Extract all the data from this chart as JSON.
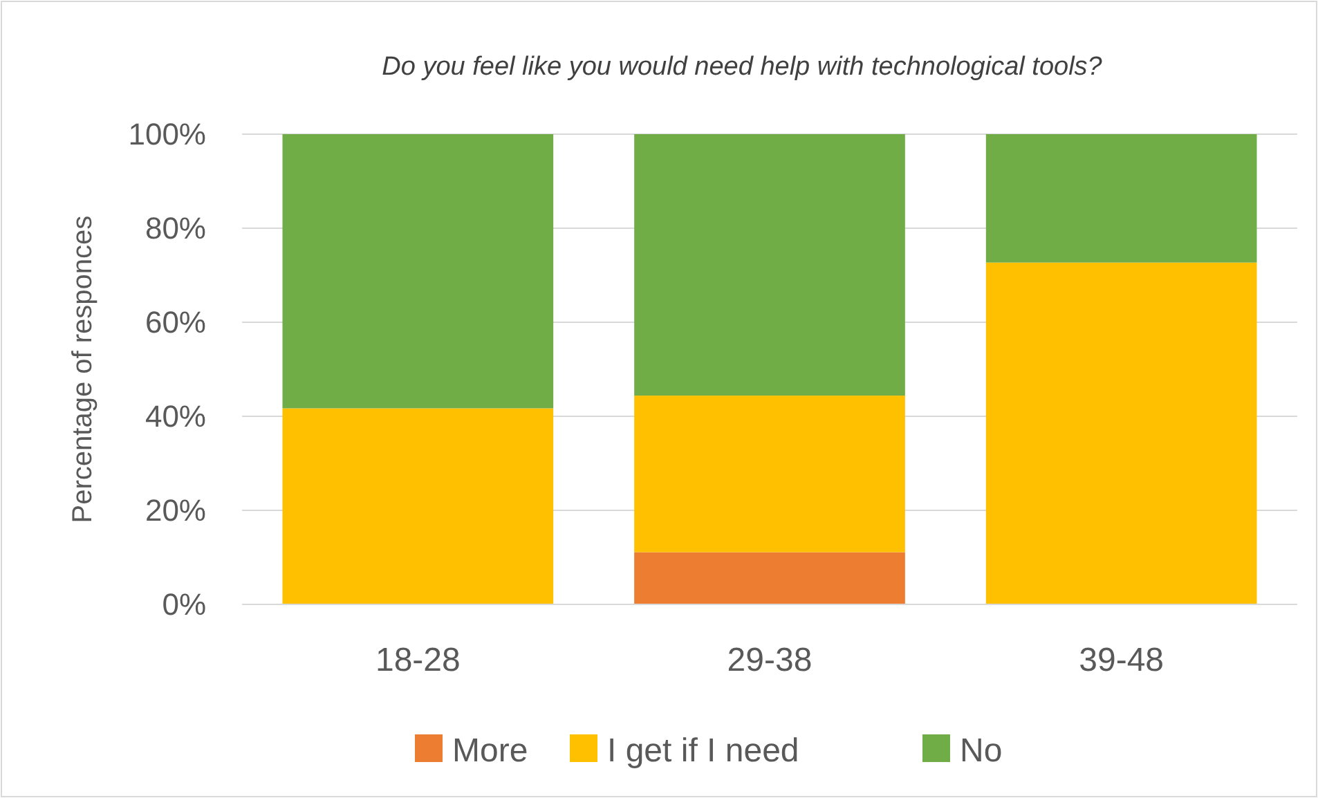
{
  "chart_data": {
    "type": "bar",
    "title": "Do you feel like you would need help with technological tools?",
    "ylabel": "Percentage of responces",
    "categories": [
      "18-28",
      "29-38",
      "39-48"
    ],
    "stacked": true,
    "series": [
      {
        "name": "More",
        "color": "#ed7d31",
        "values": [
          0,
          11.1,
          0
        ]
      },
      {
        "name": "I get if I need",
        "color": "#ffc000",
        "values": [
          41.7,
          33.3,
          72.7
        ]
      },
      {
        "name": "No",
        "color": "#70ad47",
        "values": [
          58.3,
          55.6,
          27.3
        ]
      }
    ],
    "ylim": [
      0,
      100
    ],
    "yticks": [
      {
        "value": 0,
        "label": "0%"
      },
      {
        "value": 20,
        "label": "20%"
      },
      {
        "value": 40,
        "label": "40%"
      },
      {
        "value": 60,
        "label": "60%"
      },
      {
        "value": 80,
        "label": "80%"
      },
      {
        "value": 100,
        "label": "100%"
      }
    ],
    "grid": "y",
    "legend": "bottom"
  }
}
